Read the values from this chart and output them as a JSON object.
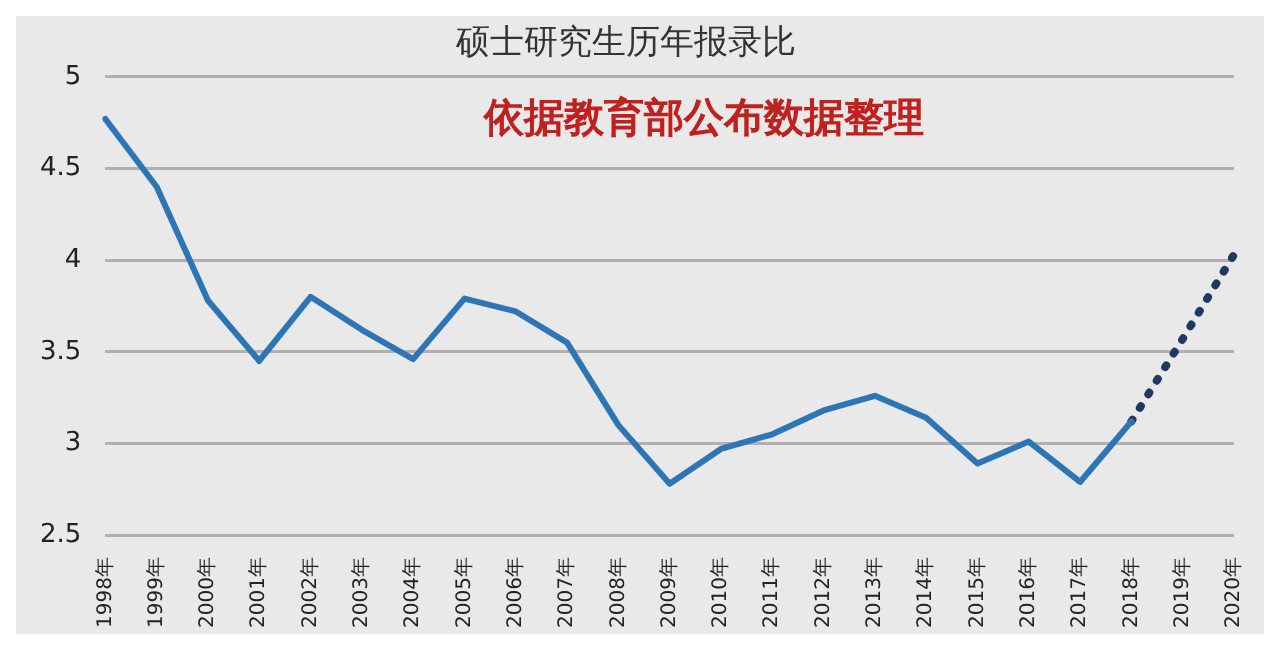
{
  "chart_data": {
    "type": "line",
    "title": "硕士研究生历年报录比",
    "annotations": [
      "依据教育部公布数据整理"
    ],
    "categories": [
      "1998年",
      "1999年",
      "2000年",
      "2001年",
      "2002年",
      "2003年",
      "2004年",
      "2005年",
      "2006年",
      "2007年",
      "2008年",
      "2009年",
      "2010年",
      "2011年",
      "2012年",
      "2013年",
      "2014年",
      "2015年",
      "2016年",
      "2017年",
      "2018年",
      "2019年",
      "2020年"
    ],
    "series": [
      {
        "color": "#2e75b6",
        "line_style": "solid",
        "values": [
          4.77,
          4.4,
          3.78,
          3.45,
          3.8,
          3.62,
          3.46,
          3.79,
          3.72,
          3.55,
          3.1,
          2.78,
          2.97,
          3.05,
          3.18,
          3.26,
          3.14,
          2.89,
          3.01,
          2.79,
          3.12,
          null,
          null
        ]
      },
      {
        "color": "#1f3864",
        "line_style": "dotted",
        "values": [
          null,
          null,
          null,
          null,
          null,
          null,
          null,
          null,
          null,
          null,
          null,
          null,
          null,
          null,
          null,
          null,
          null,
          null,
          null,
          null,
          3.12,
          3.57,
          4.03
        ]
      }
    ],
    "ylim": [
      2.5,
      5
    ],
    "yticks": [
      2.5,
      3,
      3.5,
      4,
      4.5,
      5
    ],
    "grid": "y",
    "legend": false,
    "marker": "none"
  }
}
